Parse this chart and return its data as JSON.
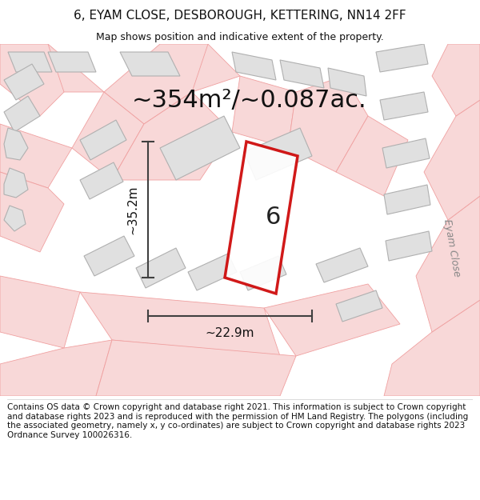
{
  "title_line1": "6, EYAM CLOSE, DESBOROUGH, KETTERING, NN14 2FF",
  "title_line2": "Map shows position and indicative extent of the property.",
  "area_text": "~354m²/~0.087ac.",
  "dim_vertical": "~35.2m",
  "dim_horizontal": "~22.9m",
  "plot_number": "6",
  "street_label": "Eyam Close",
  "footer_text": "Contains OS data © Crown copyright and database right 2021. This information is subject to Crown copyright and database rights 2023 and is reproduced with the permission of HM Land Registry. The polygons (including the associated geometry, namely x, y co-ordinates) are subject to Crown copyright and database rights 2023 Ordnance Survey 100026316.",
  "bg_color": "#ffffff",
  "map_bg": "#f7f7f7",
  "building_fill": "#e0e0e0",
  "building_edge": "#b0b0b0",
  "road_color": "#f0a0a0",
  "road_fill": "#f8d8d8",
  "plot_edge_color": "#cc0000",
  "dim_color": "#404040",
  "title_fontsize": 11,
  "subtitle_fontsize": 9,
  "area_fontsize": 22,
  "footer_fontsize": 7.5
}
